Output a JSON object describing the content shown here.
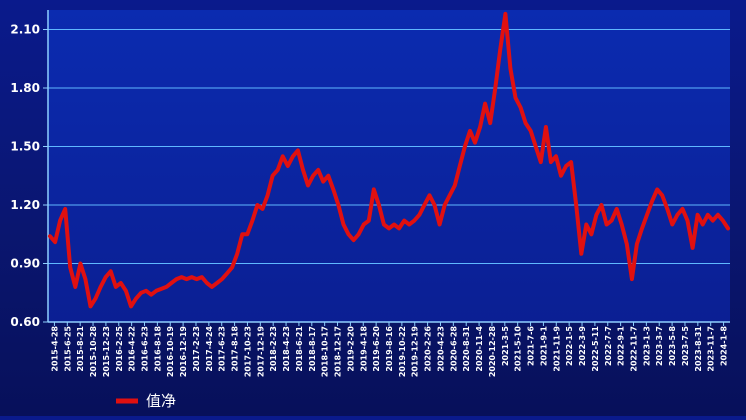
{
  "chart_data": {
    "type": "line",
    "title": "",
    "xlabel": "",
    "ylabel": "",
    "ylim": [
      0.6,
      2.2
    ],
    "y_ticks": [
      "0.60",
      "0.90",
      "1.20",
      "1.50",
      "1.80",
      "2.10"
    ],
    "x_ticks": [
      "2015-4-28",
      "2015-6-25",
      "2015-8-21",
      "2015-10-28",
      "2015-12-23",
      "2016-2-25",
      "2016-4-22",
      "2016-6-23",
      "2016-8-18",
      "2016-10-19",
      "2016-12-19",
      "2017-2-23",
      "2017-4-24",
      "2017-6-23",
      "2017-8-18",
      "2017-10-23",
      "2017-12-19",
      "2018-2-23",
      "2018-4-23",
      "2018-6-21",
      "2018-8-17",
      "2018-10-17",
      "2018-12-17",
      "2019-2-20",
      "2019-4-18",
      "2019-6-20",
      "2019-8-16",
      "2019-10-22",
      "2019-12-19",
      "2020-2-26",
      "2020-4-23",
      "2020-6-28",
      "2020-8-31",
      "2020-11-4",
      "2020-12-28",
      "2021-3-5",
      "2021-5-10",
      "2021-7-6",
      "2021-9-1",
      "2021-11-9",
      "2022-1-5",
      "2022-3-9",
      "2022-5-11",
      "2022-7-7",
      "2022-9-1",
      "2022-11-7",
      "2023-1-3",
      "2023-3-7",
      "2023-5-8",
      "2023-7-5",
      "2023-8-31",
      "2023-11-7",
      "2024-1-8"
    ],
    "grid": true,
    "legend_position": "bottom-left",
    "series": [
      {
        "name": "值净",
        "color": "#e01010",
        "values": [
          1.04,
          1.01,
          1.12,
          1.18,
          0.88,
          0.78,
          0.9,
          0.82,
          0.68,
          0.72,
          0.78,
          0.83,
          0.86,
          0.78,
          0.8,
          0.76,
          0.68,
          0.72,
          0.75,
          0.76,
          0.74,
          0.76,
          0.77,
          0.78,
          0.8,
          0.82,
          0.83,
          0.82,
          0.83,
          0.82,
          0.83,
          0.8,
          0.78,
          0.8,
          0.82,
          0.85,
          0.88,
          0.95,
          1.05,
          1.05,
          1.12,
          1.2,
          1.18,
          1.25,
          1.35,
          1.38,
          1.45,
          1.4,
          1.45,
          1.48,
          1.38,
          1.3,
          1.35,
          1.38,
          1.32,
          1.35,
          1.28,
          1.2,
          1.1,
          1.05,
          1.02,
          1.05,
          1.1,
          1.12,
          1.28,
          1.2,
          1.1,
          1.08,
          1.1,
          1.08,
          1.12,
          1.1,
          1.12,
          1.15,
          1.2,
          1.25,
          1.2,
          1.1,
          1.2,
          1.25,
          1.3,
          1.4,
          1.5,
          1.58,
          1.52,
          1.6,
          1.72,
          1.62,
          1.8,
          2.0,
          2.18,
          1.9,
          1.75,
          1.7,
          1.62,
          1.58,
          1.5,
          1.42,
          1.6,
          1.42,
          1.45,
          1.35,
          1.4,
          1.42,
          1.2,
          0.95,
          1.1,
          1.05,
          1.15,
          1.2,
          1.1,
          1.12,
          1.18,
          1.1,
          1.0,
          0.82,
          1.0,
          1.08,
          1.15,
          1.22,
          1.28,
          1.25,
          1.18,
          1.1,
          1.15,
          1.18,
          1.12,
          0.98,
          1.15,
          1.1,
          1.15,
          1.12,
          1.15,
          1.12,
          1.08
        ]
      }
    ]
  }
}
